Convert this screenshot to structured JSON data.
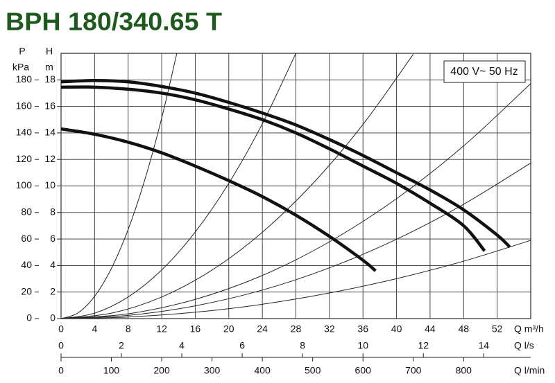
{
  "chart_data": {
    "type": "line",
    "title": "BPH 180/340.65 T",
    "annotation": "400 V~ 50 Hz",
    "xlabel": "Q m³/h",
    "ylabel": "H",
    "yunit": "m",
    "y2label": "P",
    "y2unit": "kPa",
    "xlim": [
      0,
      56
    ],
    "xticks": [
      0,
      4,
      8,
      12,
      16,
      20,
      24,
      28,
      32,
      36,
      40,
      44,
      48,
      52
    ],
    "ylim": [
      0,
      20
    ],
    "yticks": [
      0,
      2,
      4,
      6,
      8,
      10,
      12,
      14,
      16,
      18
    ],
    "y2lim": [
      0,
      200
    ],
    "y2ticks": [
      0,
      20,
      40,
      60,
      80,
      100,
      120,
      140,
      160,
      180
    ],
    "grid": true,
    "secondary_x_axes": [
      {
        "label": "Q l/s",
        "lim": [
          0,
          15.556
        ],
        "ticks": [
          0,
          2,
          4,
          6,
          8,
          10,
          12,
          14
        ]
      },
      {
        "label": "Q l/min",
        "lim": [
          0,
          933.33
        ],
        "ticks": [
          0,
          100,
          200,
          300,
          400,
          500,
          600,
          700,
          800
        ]
      }
    ],
    "series": [
      {
        "color": "#111111",
        "line_width": 4.5,
        "x": [
          0,
          4,
          8,
          12,
          16,
          20,
          24,
          28,
          32,
          36,
          40,
          44,
          48,
          52,
          53.5
        ],
        "values": [
          17.85,
          17.95,
          17.85,
          17.5,
          17.0,
          16.3,
          15.5,
          14.6,
          13.5,
          12.3,
          11.0,
          9.7,
          8.2,
          6.3,
          5.4
        ]
      },
      {
        "color": "#111111",
        "line_width": 4.5,
        "x": [
          0,
          4,
          8,
          12,
          16,
          20,
          24,
          28,
          32,
          36,
          40,
          44,
          48,
          50.5
        ],
        "values": [
          17.45,
          17.45,
          17.3,
          17.0,
          16.5,
          15.8,
          15.0,
          14.0,
          12.8,
          11.5,
          10.2,
          8.7,
          7.0,
          5.1
        ]
      },
      {
        "color": "#111111",
        "line_width": 4.5,
        "x": [
          0,
          4,
          8,
          12,
          16,
          20,
          24,
          28,
          32,
          36,
          37.5
        ],
        "values": [
          14.3,
          13.9,
          13.3,
          12.5,
          11.5,
          10.4,
          9.2,
          7.8,
          6.2,
          4.4,
          3.6
        ]
      },
      {
        "color": "#222222",
        "line_width": 1,
        "x": [
          0,
          2,
          4,
          6,
          8,
          10,
          12,
          13.8
        ],
        "values": [
          0,
          0.42,
          1.68,
          3.78,
          6.72,
          10.5,
          15.12,
          20.0
        ]
      },
      {
        "color": "#222222",
        "line_width": 1,
        "x": [
          0,
          4,
          8,
          12,
          16,
          20,
          24,
          28
        ],
        "values": [
          0,
          0.41,
          1.63,
          3.67,
          6.53,
          10.2,
          14.69,
          20.0
        ]
      },
      {
        "color": "#222222",
        "line_width": 1,
        "x": [
          0,
          6,
          12,
          18,
          24,
          30,
          36,
          42
        ],
        "values": [
          0,
          0.41,
          1.63,
          3.66,
          6.51,
          10.17,
          14.64,
          19.93
        ]
      },
      {
        "color": "#222222",
        "line_width": 1,
        "x": [
          0,
          8,
          16,
          24,
          32,
          40,
          48,
          56
        ],
        "values": [
          0,
          0.36,
          1.45,
          3.25,
          5.79,
          9.04,
          13.02,
          17.72
        ]
      },
      {
        "color": "#222222",
        "line_width": 1,
        "x": [
          0,
          8,
          16,
          24,
          32,
          40,
          48,
          56
        ],
        "values": [
          0,
          0.24,
          0.96,
          2.15,
          3.83,
          5.98,
          8.62,
          11.73
        ]
      },
      {
        "color": "#222222",
        "line_width": 1,
        "x": [
          0,
          8,
          16,
          24,
          32,
          40,
          48,
          56
        ],
        "values": [
          0,
          0.12,
          0.48,
          1.08,
          1.93,
          3.01,
          4.33,
          5.9
        ]
      }
    ]
  }
}
